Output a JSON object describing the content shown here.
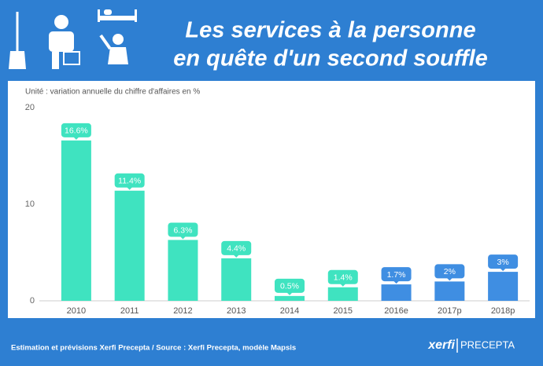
{
  "chart_data": {
    "type": "bar",
    "title": [
      "Les services à la personne",
      "en quête d'un second souffle"
    ],
    "subtitle": "Unité : variation annuelle du chiffre d'affaires en %",
    "categories": [
      "2010",
      "2011",
      "2012",
      "2013",
      "2014",
      "2015",
      "2016e",
      "2017p",
      "2018p"
    ],
    "values": [
      16.6,
      11.4,
      6.3,
      4.4,
      0.5,
      1.4,
      1.7,
      2,
      3
    ],
    "value_labels": [
      "16.6%",
      "11.4%",
      "6.3%",
      "4.4%",
      "0.5%",
      "1.4%",
      "1.7%",
      "2%",
      "3%"
    ],
    "colors": [
      "#3fe3c0",
      "#3fe3c0",
      "#3fe3c0",
      "#3fe3c0",
      "#3fe3c0",
      "#3fe3c0",
      "#3f8ee2",
      "#3f8ee2",
      "#3f8ee2"
    ],
    "ylim": [
      0,
      20
    ],
    "yticks": [
      0,
      10,
      20
    ],
    "footer": "Estimation et prévisions Xerfi Precepta / Source : Xerfi Precepta, modèle Mapsis",
    "logo": [
      "xerfi",
      "PRECEPTA"
    ]
  }
}
